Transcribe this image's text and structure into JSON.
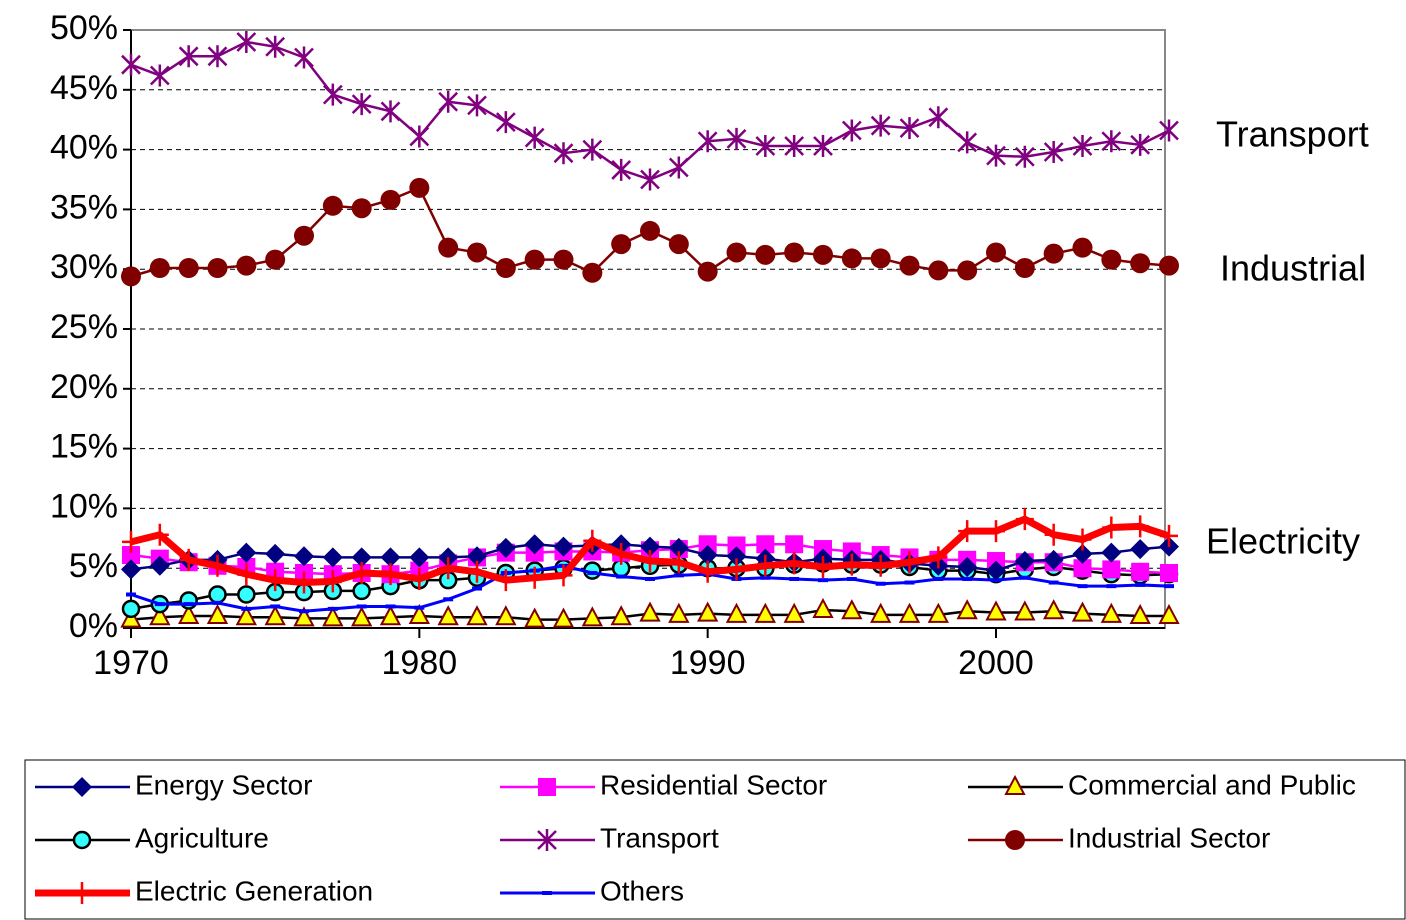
{
  "chart_data": {
    "type": "line",
    "annotations": [
      "Transport",
      "Industrial",
      "Electricity"
    ],
    "x": [
      1970,
      1971,
      1972,
      1973,
      1974,
      1975,
      1976,
      1977,
      1978,
      1979,
      1980,
      1981,
      1982,
      1983,
      1984,
      1985,
      1986,
      1987,
      1988,
      1989,
      1990,
      1991,
      1992,
      1993,
      1994,
      1995,
      1996,
      1997,
      1998,
      1999,
      2000,
      2001,
      2002,
      2003,
      2004,
      2005,
      2006
    ],
    "xlim": [
      1970,
      2006
    ],
    "xticks": [
      1970,
      1980,
      1990,
      2000
    ],
    "ylim": [
      0,
      50
    ],
    "yticks": [
      {
        "value": 0,
        "label": "0%"
      },
      {
        "value": 5,
        "label": "5%"
      },
      {
        "value": 10,
        "label": "10%"
      },
      {
        "value": 15,
        "label": "15%"
      },
      {
        "value": 20,
        "label": "20%"
      },
      {
        "value": 25,
        "label": "25%"
      },
      {
        "value": 30,
        "label": "30%"
      },
      {
        "value": 35,
        "label": "35%"
      },
      {
        "value": 40,
        "label": "40%"
      },
      {
        "value": 45,
        "label": "45%"
      },
      {
        "value": 50,
        "label": "50%"
      }
    ],
    "grid": true,
    "legend": "bottom",
    "series": [
      {
        "name": "Energy Sector",
        "color": "#000080",
        "marker": "diamond",
        "values": [
          4.9,
          5.2,
          5.7,
          5.7,
          6.3,
          6.2,
          6.0,
          5.9,
          5.9,
          5.9,
          5.9,
          5.9,
          6.0,
          6.7,
          7.0,
          6.8,
          6.9,
          7.0,
          6.8,
          6.7,
          6.1,
          6.0,
          5.8,
          5.5,
          5.8,
          5.7,
          5.7,
          5.4,
          5.2,
          5.1,
          4.8,
          5.6,
          5.7,
          6.2,
          6.3,
          6.6,
          6.8
        ]
      },
      {
        "name": "Residential Sector",
        "color": "#ff00ff",
        "marker": "square",
        "values": [
          6.1,
          5.8,
          5.5,
          5.2,
          5.1,
          4.7,
          4.6,
          4.5,
          4.6,
          4.5,
          4.8,
          5.4,
          5.9,
          6.3,
          6.3,
          6.4,
          6.4,
          6.3,
          6.5,
          6.6,
          7.0,
          6.9,
          7.0,
          7.0,
          6.6,
          6.4,
          6.1,
          5.9,
          5.7,
          5.7,
          5.6,
          5.5,
          5.5,
          5.0,
          4.9,
          4.7,
          4.6
        ]
      },
      {
        "name": "Commercial and Public",
        "color": "#000000",
        "marker": "triangle",
        "values": [
          0.7,
          0.9,
          1.0,
          1.0,
          0.9,
          0.9,
          0.8,
          0.8,
          0.8,
          0.9,
          1.0,
          0.9,
          0.9,
          0.9,
          0.7,
          0.7,
          0.8,
          0.9,
          1.2,
          1.1,
          1.2,
          1.1,
          1.1,
          1.1,
          1.5,
          1.4,
          1.1,
          1.1,
          1.1,
          1.4,
          1.3,
          1.3,
          1.4,
          1.2,
          1.1,
          1.0,
          1.0
        ]
      },
      {
        "name": "Agriculture",
        "color": "#000000",
        "marker": "circle-cyan",
        "values": [
          1.6,
          2.0,
          2.3,
          2.8,
          2.8,
          3.0,
          3.0,
          3.1,
          3.1,
          3.5,
          4.0,
          4.0,
          4.2,
          4.6,
          4.8,
          5.0,
          4.8,
          5.0,
          5.2,
          5.3,
          5.0,
          5.0,
          5.0,
          5.3,
          5.4,
          5.3,
          5.3,
          5.1,
          4.8,
          4.8,
          4.5,
          4.9,
          5.1,
          4.8,
          4.5,
          4.4,
          4.5
        ]
      },
      {
        "name": "Transport",
        "color": "#800080",
        "marker": "star",
        "values": [
          47.1,
          46.2,
          47.8,
          47.8,
          49.0,
          48.6,
          47.7,
          44.6,
          43.8,
          43.2,
          41.1,
          44.0,
          43.7,
          42.3,
          41.0,
          39.7,
          40.0,
          38.3,
          37.5,
          38.5,
          40.7,
          40.9,
          40.3,
          40.3,
          40.3,
          41.6,
          42.0,
          41.8,
          42.7,
          40.6,
          39.5,
          39.4,
          39.8,
          40.3,
          40.7,
          40.4,
          41.6
        ]
      },
      {
        "name": "Industrial Sector",
        "color": "#800000",
        "marker": "circle",
        "values": [
          29.4,
          30.1,
          30.1,
          30.1,
          30.3,
          30.8,
          32.8,
          35.3,
          35.1,
          35.8,
          36.8,
          31.8,
          31.4,
          30.1,
          30.8,
          30.8,
          29.7,
          32.1,
          33.2,
          32.1,
          29.8,
          31.4,
          31.2,
          31.4,
          31.2,
          30.9,
          30.9,
          30.3,
          29.9,
          29.9,
          31.4,
          30.1,
          31.3,
          31.8,
          30.8,
          30.5,
          30.3
        ]
      },
      {
        "name": "Electric Generation",
        "color": "#ff0000",
        "marker": "plus",
        "values": [
          7.2,
          7.8,
          5.7,
          5.2,
          4.5,
          4.0,
          3.8,
          3.9,
          4.6,
          4.5,
          4.1,
          5.0,
          4.7,
          4.0,
          4.2,
          4.4,
          7.3,
          6.2,
          5.6,
          5.5,
          4.7,
          4.9,
          5.2,
          5.4,
          5.1,
          5.3,
          5.2,
          5.5,
          5.9,
          8.1,
          8.1,
          9.1,
          7.8,
          7.4,
          8.4,
          8.5,
          7.7
        ]
      },
      {
        "name": "Others",
        "color": "#0000ff",
        "marker": "dash",
        "values": [
          2.8,
          2.0,
          2.0,
          2.1,
          1.6,
          1.8,
          1.4,
          1.6,
          1.8,
          1.8,
          1.7,
          2.4,
          3.3,
          4.6,
          4.8,
          5.2,
          4.6,
          4.3,
          4.1,
          4.4,
          4.5,
          4.1,
          4.2,
          4.1,
          4.0,
          4.1,
          3.7,
          3.8,
          4.1,
          4.1,
          4.0,
          4.2,
          3.8,
          3.5,
          3.5,
          3.6,
          3.5
        ]
      }
    ]
  }
}
